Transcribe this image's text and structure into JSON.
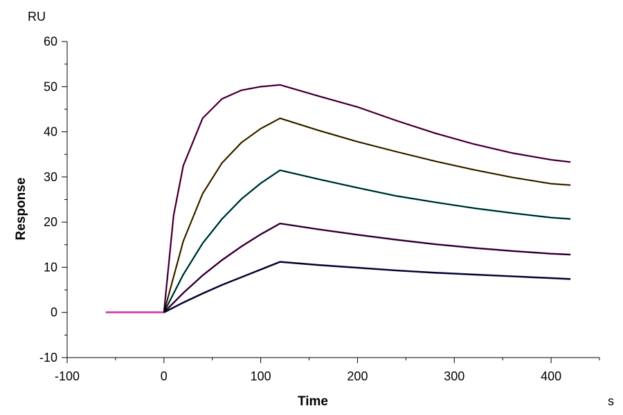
{
  "chart_data": {
    "type": "line",
    "title": "",
    "xlabel": "Time",
    "ylabel": "Response",
    "x_unit": "s",
    "y_unit": "RU",
    "xlim": [
      -100,
      450
    ],
    "ylim": [
      -10,
      60
    ],
    "x_ticks": [
      -100,
      0,
      100,
      200,
      300,
      400
    ],
    "y_ticks": [
      -10,
      0,
      10,
      20,
      30,
      40,
      50,
      60
    ],
    "grid": false,
    "legend": "none",
    "fit_color": "#000000",
    "series": [
      {
        "color": "#1a1a8c",
        "x": [
          -60,
          0,
          20,
          40,
          60,
          80,
          100,
          120,
          160,
          200,
          240,
          280,
          320,
          360,
          400,
          420
        ],
        "y": [
          0,
          0,
          2.2,
          4.2,
          6.1,
          7.8,
          9.5,
          11.2,
          10.5,
          9.9,
          9.3,
          8.8,
          8.4,
          8.0,
          7.6,
          7.4
        ]
      },
      {
        "color": "#a020a0",
        "x": [
          -60,
          0,
          20,
          40,
          60,
          80,
          100,
          120,
          160,
          200,
          240,
          280,
          320,
          360,
          400,
          420
        ],
        "y": [
          0,
          0,
          4.3,
          8.2,
          11.6,
          14.6,
          17.3,
          19.7,
          18.4,
          17.2,
          16.1,
          15.1,
          14.3,
          13.6,
          13.0,
          12.8
        ]
      },
      {
        "color": "#20b0b0",
        "x": [
          -60,
          0,
          20,
          40,
          60,
          80,
          100,
          120,
          160,
          200,
          240,
          280,
          320,
          360,
          400,
          420
        ],
        "y": [
          0,
          0,
          8.4,
          15.3,
          20.7,
          25.1,
          28.6,
          31.5,
          29.5,
          27.6,
          25.8,
          24.4,
          23.1,
          22.0,
          21.0,
          20.7
        ]
      },
      {
        "color": "#c8a040",
        "x": [
          -60,
          0,
          20,
          40,
          60,
          80,
          100,
          120,
          160,
          200,
          240,
          280,
          320,
          360,
          400,
          420
        ],
        "y": [
          0,
          0,
          15.8,
          26.3,
          33.1,
          37.6,
          40.7,
          43.0,
          40.3,
          37.8,
          35.6,
          33.5,
          31.6,
          29.9,
          28.5,
          28.2
        ]
      },
      {
        "color": "#e040c0",
        "x": [
          -60,
          0,
          10,
          20,
          40,
          60,
          80,
          100,
          120,
          160,
          200,
          240,
          280,
          320,
          360,
          400,
          420
        ],
        "y": [
          0,
          0,
          21.5,
          32.5,
          43.0,
          47.3,
          49.2,
          50.0,
          50.4,
          47.9,
          45.5,
          42.5,
          39.7,
          37.3,
          35.3,
          33.8,
          33.3
        ]
      }
    ]
  }
}
